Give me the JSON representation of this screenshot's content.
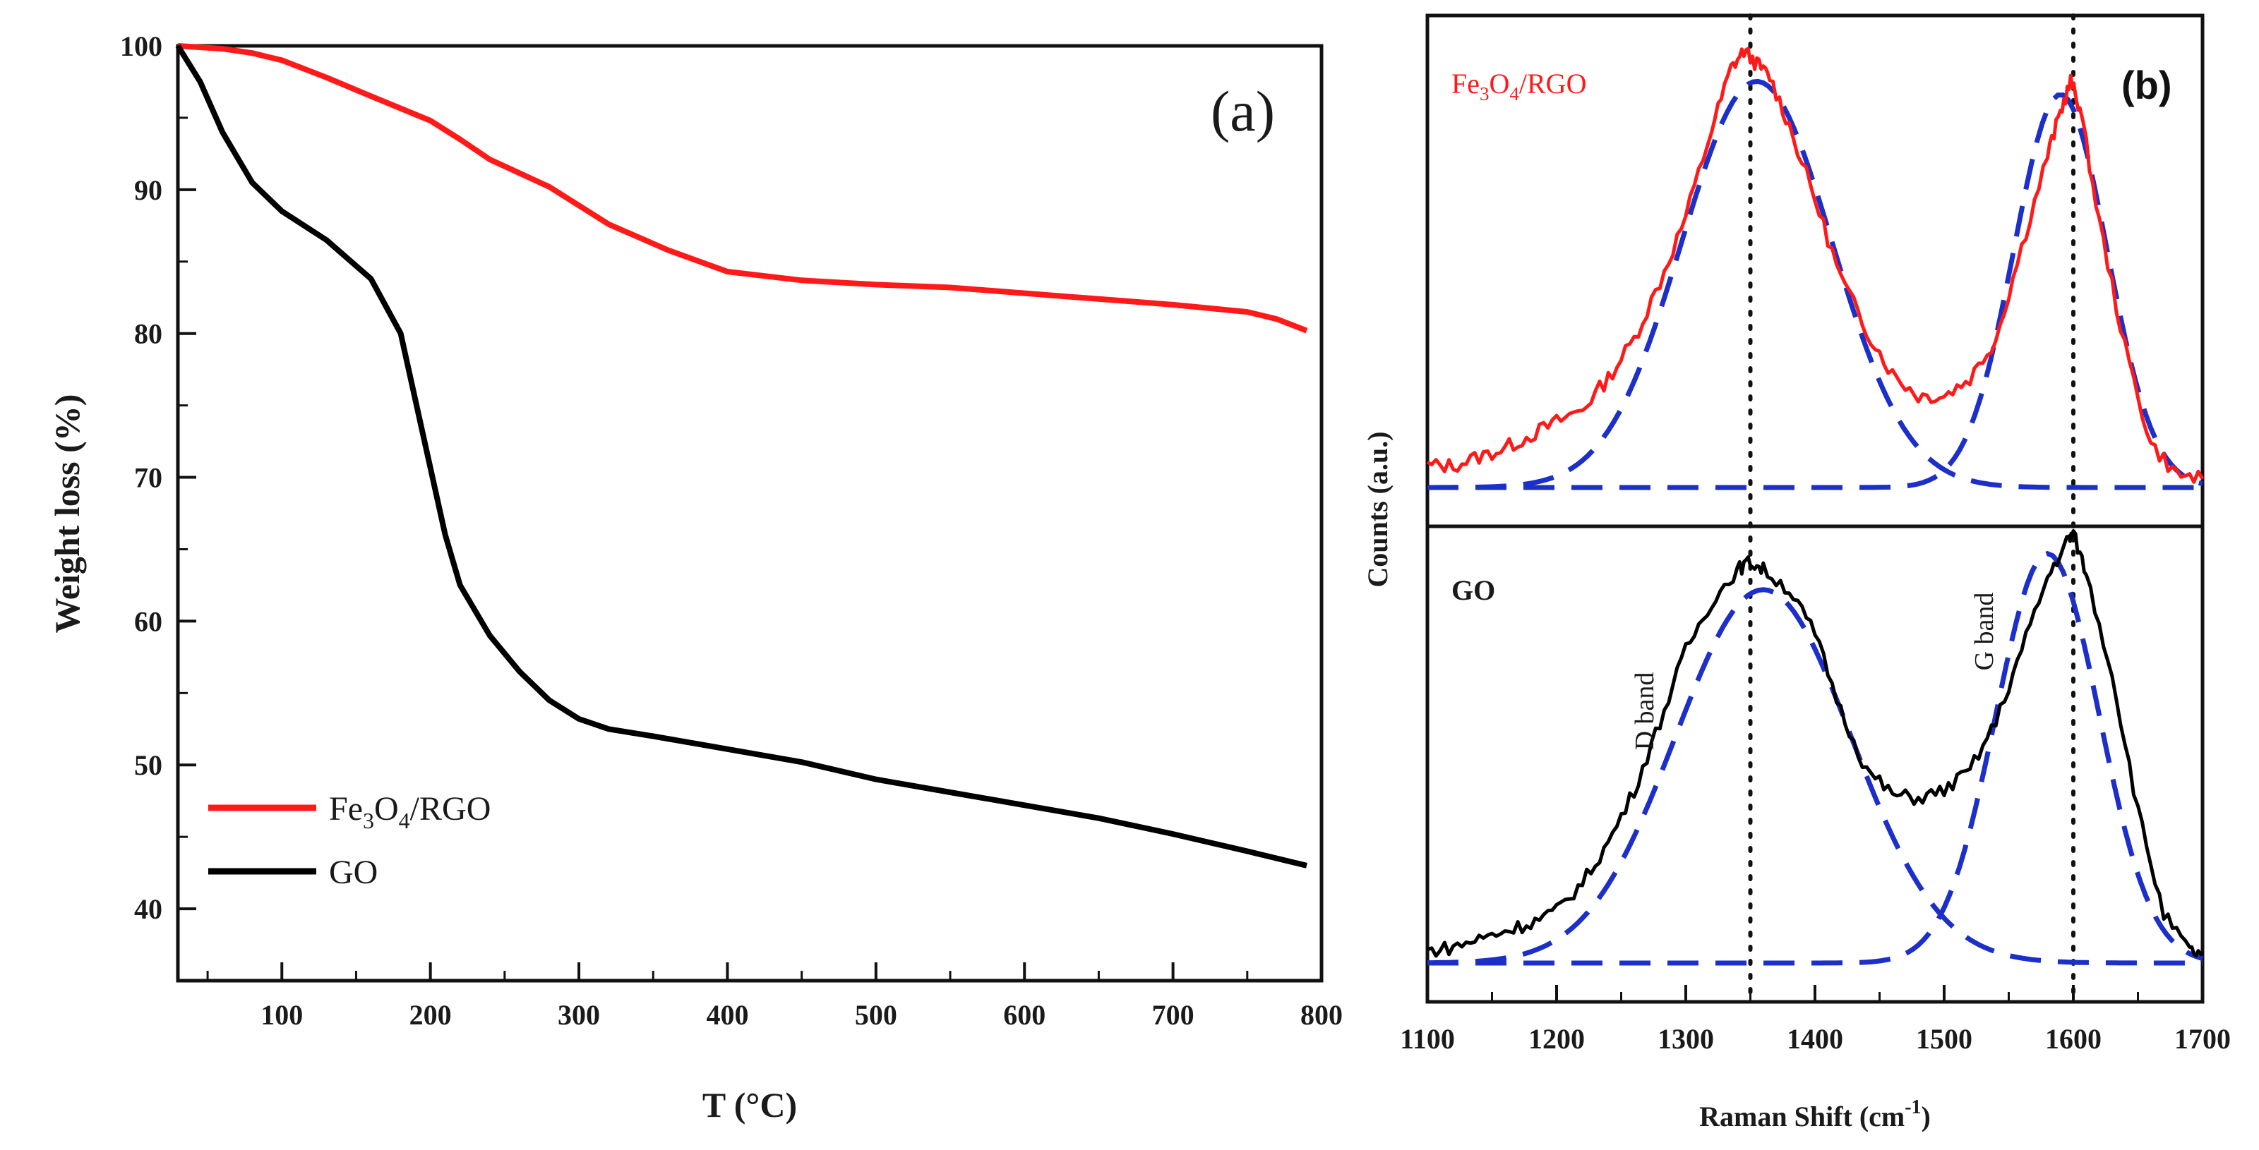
{
  "chart_data": [
    {
      "type": "line",
      "panel": "(a)",
      "xlabel": "T (°C)",
      "ylabel": "Weight loss (%)",
      "xlim": [
        30,
        800
      ],
      "ylim": [
        35,
        100
      ],
      "x_ticks": [
        100,
        200,
        300,
        400,
        500,
        600,
        700,
        800
      ],
      "y_ticks": [
        40,
        50,
        60,
        70,
        80,
        90,
        100
      ],
      "legend_position": "bottom-left",
      "series": [
        {
          "name": "Fe3O4/RGO",
          "color": "#ff1a1a",
          "x": [
            30,
            60,
            80,
            100,
            130,
            160,
            200,
            220,
            240,
            280,
            320,
            360,
            400,
            450,
            500,
            550,
            600,
            650,
            700,
            750,
            770,
            790
          ],
          "y": [
            100,
            99.8,
            99.5,
            99.0,
            97.8,
            96.5,
            94.8,
            93.5,
            92.1,
            90.2,
            87.6,
            85.8,
            84.3,
            83.7,
            83.4,
            83.2,
            82.8,
            82.4,
            82.0,
            81.5,
            81.0,
            80.2
          ]
        },
        {
          "name": "GO",
          "color": "#000000",
          "x": [
            30,
            45,
            60,
            80,
            100,
            130,
            160,
            180,
            195,
            210,
            220,
            240,
            260,
            280,
            300,
            320,
            350,
            400,
            450,
            500,
            550,
            600,
            650,
            700,
            750,
            790
          ],
          "y": [
            100,
            97.5,
            94.0,
            90.5,
            88.5,
            86.5,
            83.8,
            80.0,
            73.0,
            66.0,
            62.5,
            59.0,
            56.5,
            54.5,
            53.2,
            52.5,
            52.0,
            51.1,
            50.2,
            49.0,
            48.1,
            47.2,
            46.3,
            45.2,
            44.0,
            43.0
          ]
        }
      ],
      "legend": [
        {
          "label_main": "Fe",
          "sub1": "3",
          "mid": "O",
          "sub2": "4",
          "tail": "/RGO"
        },
        {
          "label_main": "GO"
        }
      ]
    },
    {
      "type": "line",
      "panel": "(b)",
      "xlabel_main": "Raman Shift (cm",
      "xlabel_sup": "-1",
      "xlabel_tail": ")",
      "ylabel": "Counts (a.u.)",
      "xlim": [
        1100,
        1700
      ],
      "x_ticks": [
        1100,
        1200,
        1300,
        1400,
        1500,
        1600,
        1700
      ],
      "reference_lines_x": [
        1350,
        1600
      ],
      "subplots": [
        {
          "name": "Fe3O4/RGO",
          "label_main": "Fe",
          "sub1": "3",
          "mid": "O",
          "sub2": "4",
          "tail": "/RGO",
          "color": "#ff1a1a",
          "fit_color": "#1c2fc8",
          "ylim": [
            0,
            1.1
          ],
          "data_x": [
            1100,
            1120,
            1140,
            1160,
            1180,
            1200,
            1220,
            1240,
            1260,
            1280,
            1300,
            1320,
            1335,
            1345,
            1355,
            1365,
            1380,
            1400,
            1420,
            1440,
            1460,
            1480,
            1500,
            1520,
            1540,
            1560,
            1580,
            1590,
            1598,
            1605,
            1620,
            1640,
            1660,
            1680,
            1700
          ],
          "data_y": [
            0.05,
            0.05,
            0.07,
            0.09,
            0.12,
            0.15,
            0.18,
            0.25,
            0.34,
            0.47,
            0.62,
            0.82,
            0.96,
            1.0,
            0.97,
            0.94,
            0.83,
            0.66,
            0.48,
            0.36,
            0.26,
            0.21,
            0.21,
            0.25,
            0.34,
            0.55,
            0.76,
            0.86,
            0.93,
            0.87,
            0.61,
            0.32,
            0.1,
            0.03,
            0.02
          ],
          "fits": [
            {
              "center": 1355,
              "amplitude": 0.93,
              "width": 58
            },
            {
              "center": 1590,
              "amplitude": 0.9,
              "width": 36
            }
          ]
        },
        {
          "name": "GO",
          "label_main": "GO",
          "color": "#000000",
          "fit_color": "#1c2fc8",
          "ylim": [
            0,
            1.1
          ],
          "data_x": [
            1100,
            1120,
            1140,
            1160,
            1180,
            1200,
            1220,
            1240,
            1260,
            1280,
            1300,
            1320,
            1340,
            1350,
            1360,
            1380,
            1400,
            1420,
            1440,
            1460,
            1480,
            1500,
            1520,
            1540,
            1560,
            1580,
            1595,
            1600,
            1610,
            1630,
            1650,
            1670,
            1690,
            1700
          ],
          "data_y": [
            0.03,
            0.04,
            0.06,
            0.08,
            0.1,
            0.13,
            0.2,
            0.3,
            0.43,
            0.6,
            0.78,
            0.9,
            0.98,
            1.0,
            0.98,
            0.93,
            0.82,
            0.63,
            0.48,
            0.42,
            0.41,
            0.43,
            0.48,
            0.6,
            0.78,
            0.96,
            1.05,
            1.07,
            0.97,
            0.72,
            0.38,
            0.12,
            0.03,
            0.02
          ],
          "fits": [
            {
              "center": 1360,
              "amplitude": 0.93,
              "width": 68
            },
            {
              "center": 1580,
              "amplitude": 1.02,
              "width": 40
            }
          ]
        }
      ],
      "annotations": [
        "D band",
        "G band"
      ]
    }
  ]
}
